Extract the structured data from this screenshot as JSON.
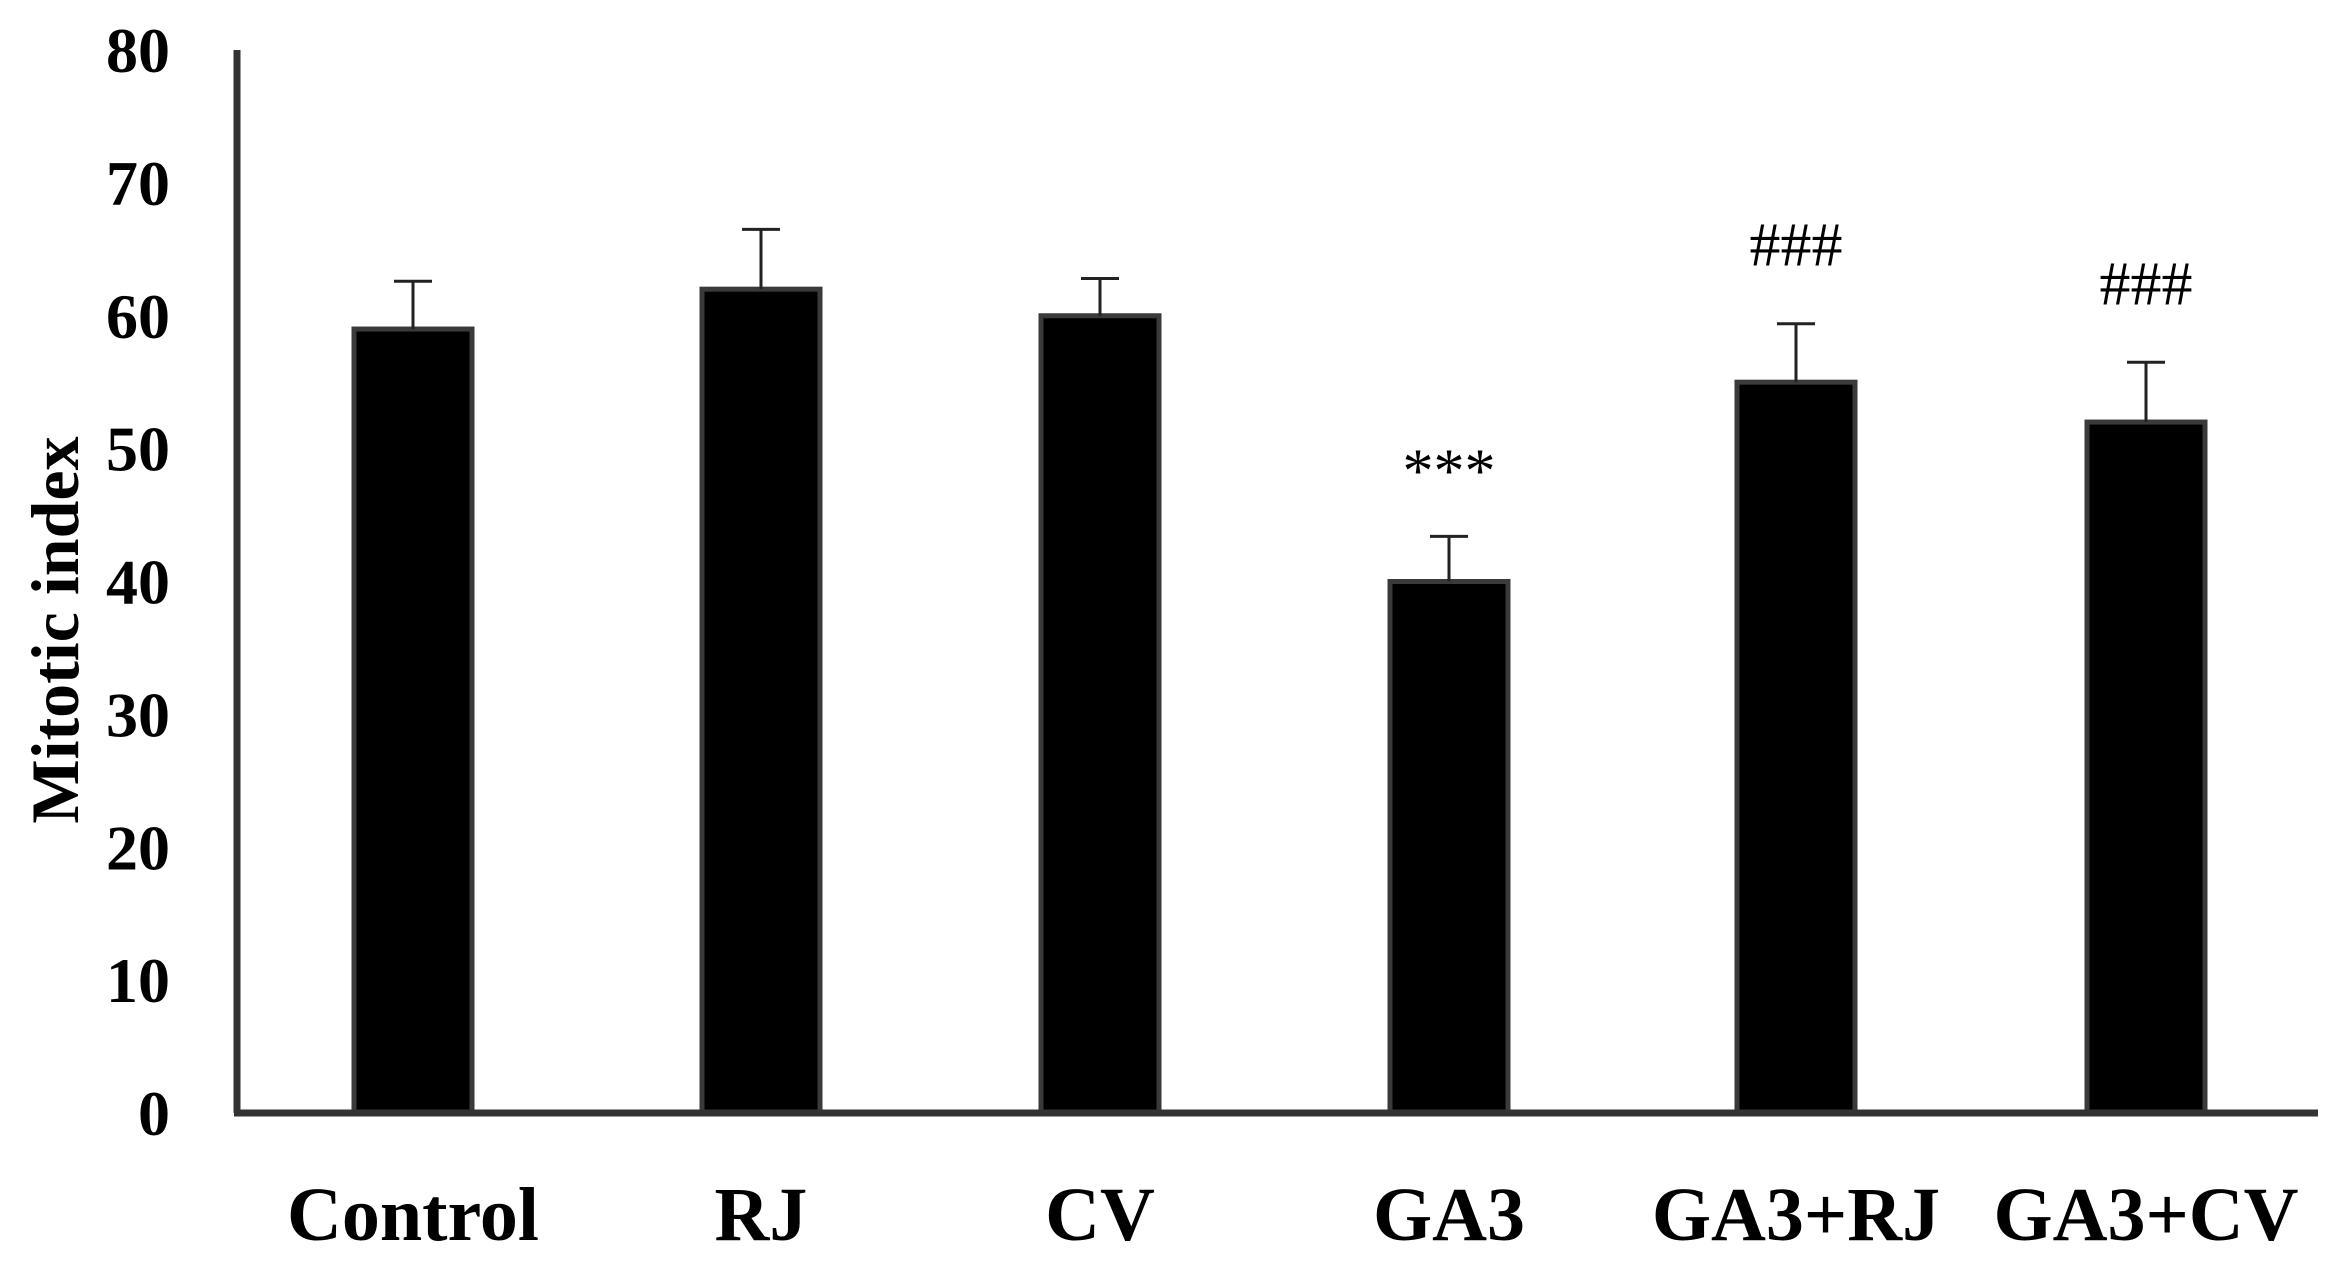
{
  "chart_data": {
    "type": "bar",
    "categories": [
      "Control",
      "RJ",
      "CV",
      "GA3",
      "GA3+RJ",
      "GA3+CV"
    ],
    "values": [
      59,
      62,
      60,
      40,
      55,
      52
    ],
    "errors": [
      3.6,
      4.5,
      2.8,
      3.4,
      4.4,
      4.5
    ],
    "annotations": [
      "",
      "",
      "",
      "***",
      "###",
      "###"
    ],
    "title": "",
    "xlabel": "",
    "ylabel": "Mitotic index",
    "ylim": [
      0,
      80
    ],
    "yticks": [
      0,
      10,
      20,
      30,
      40,
      50,
      60,
      70,
      80
    ],
    "grid": false,
    "colors": {
      "bar": "#000000",
      "bar_edge": "#3a3a3a",
      "axis": "#333333"
    }
  }
}
